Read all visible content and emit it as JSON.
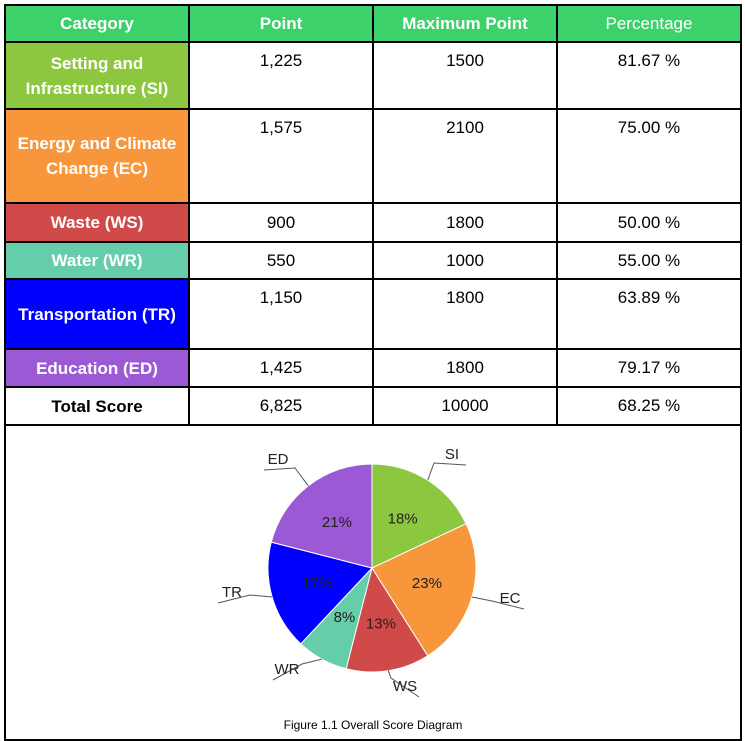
{
  "table": {
    "header": [
      "Category",
      "Point",
      "Maximum Point",
      "Percentage"
    ],
    "rows": [
      [
        "Setting and Infrastructure (SI)",
        "1,225",
        "1500",
        "81.67 %"
      ],
      [
        "Energy and Climate Change (EC)",
        "1,575",
        "2100",
        "75.00 %"
      ],
      [
        "Waste (WS)",
        "900",
        "1800",
        "50.00 %"
      ],
      [
        "Water (WR)",
        "550",
        "1000",
        "55.00 %"
      ],
      [
        "Transportation (TR)",
        "1,150",
        "1800",
        "63.89 %"
      ],
      [
        "Education (ED)",
        "1,425",
        "1800",
        "79.17 %"
      ],
      [
        "Total Score",
        "6,825",
        "10000",
        "68.25 %"
      ]
    ]
  },
  "chart_data": {
    "type": "pie",
    "categories": [
      "SI",
      "EC",
      "WS",
      "WR",
      "TR",
      "ED"
    ],
    "values": [
      18,
      23,
      13,
      8,
      17,
      21
    ],
    "value_labels": [
      "18%",
      "23%",
      "13%",
      "8%",
      "17%",
      "21%"
    ],
    "colors": [
      "#8dc63f",
      "#f7963a",
      "#d04a4a",
      "#66cdaa",
      "#0000ff",
      "#9b59d6"
    ]
  },
  "caption": "Figure 1.1 Overall Score Diagram"
}
